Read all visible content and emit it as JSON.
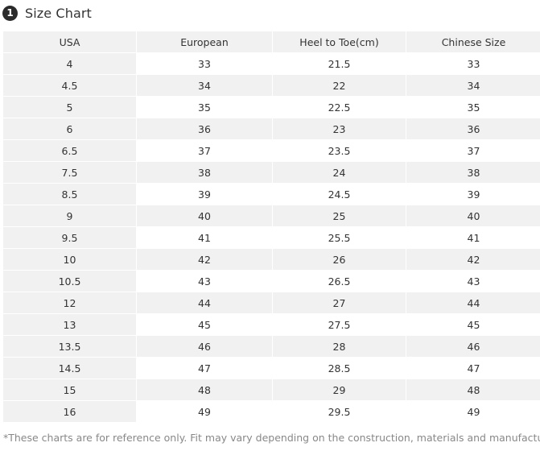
{
  "header": {
    "badge": "1",
    "title": "Size Chart"
  },
  "table": {
    "columns": [
      "USA",
      "European",
      "Heel to Toe(cm)",
      "Chinese Size"
    ],
    "rows": [
      [
        "4",
        "33",
        "21.5",
        "33"
      ],
      [
        "4.5",
        "34",
        "22",
        "34"
      ],
      [
        "5",
        "35",
        "22.5",
        "35"
      ],
      [
        "6",
        "36",
        "23",
        "36"
      ],
      [
        "6.5",
        "37",
        "23.5",
        "37"
      ],
      [
        "7.5",
        "38",
        "24",
        "38"
      ],
      [
        "8.5",
        "39",
        "24.5",
        "39"
      ],
      [
        "9",
        "40",
        "25",
        "40"
      ],
      [
        "9.5",
        "41",
        "25.5",
        "41"
      ],
      [
        "10",
        "42",
        "26",
        "42"
      ],
      [
        "10.5",
        "43",
        "26.5",
        "43"
      ],
      [
        "12",
        "44",
        "27",
        "44"
      ],
      [
        "13",
        "45",
        "27.5",
        "45"
      ],
      [
        "13.5",
        "46",
        "28",
        "46"
      ],
      [
        "14.5",
        "47",
        "28.5",
        "47"
      ],
      [
        "15",
        "48",
        "29",
        "48"
      ],
      [
        "16",
        "49",
        "29.5",
        "49"
      ]
    ]
  },
  "note": "*These charts are for reference only. Fit may vary depending on the construction, materials and manufacturer.",
  "colors": {
    "header_bg": "#f1f1f1",
    "badge_bg": "#2b2b2b",
    "note_text": "#888888"
  }
}
